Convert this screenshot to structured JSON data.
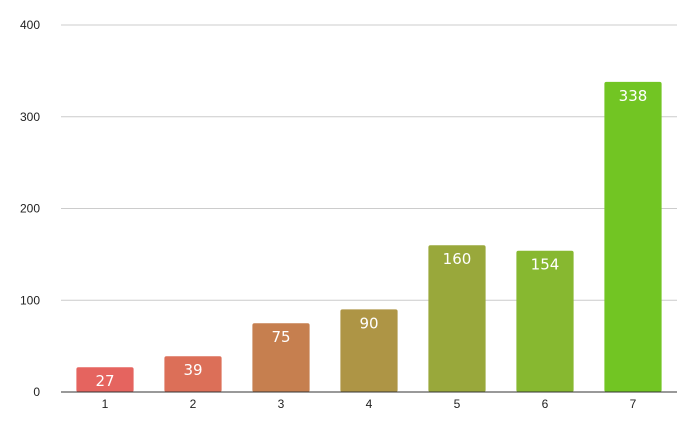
{
  "chart_data": {
    "type": "bar",
    "title": "",
    "xlabel": "",
    "ylabel": "",
    "categories": [
      "1",
      "2",
      "3",
      "4",
      "5",
      "6",
      "7"
    ],
    "values": [
      27,
      39,
      75,
      90,
      160,
      154,
      338
    ],
    "ylim": [
      0,
      400
    ],
    "yticks": [
      0,
      100,
      200,
      300,
      400
    ],
    "ytick_labels": [
      "0",
      "100",
      "200",
      "300",
      "400"
    ],
    "bar_colors": [
      "#e5645f",
      "#dc6f58",
      "#c67f4f",
      "#ae9545",
      "#99a83b",
      "#87b830",
      "#72c523"
    ],
    "data_labels": [
      "27",
      "39",
      "75",
      "90",
      "160",
      "154",
      "338"
    ],
    "grid": true,
    "legend": "none"
  }
}
